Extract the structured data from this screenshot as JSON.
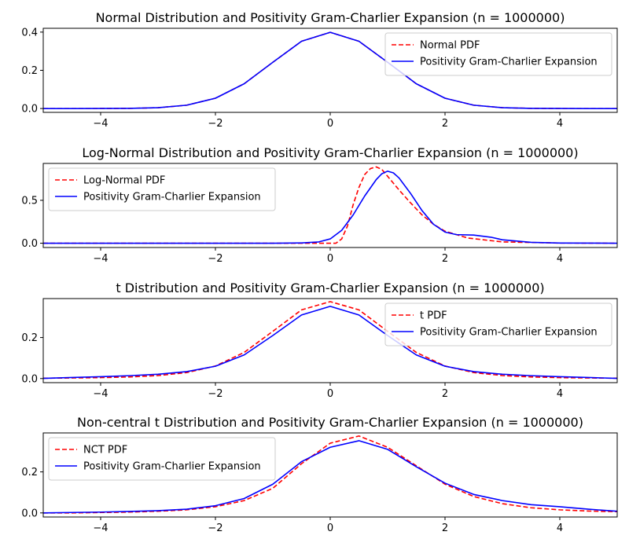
{
  "chart_data": [
    {
      "type": "line",
      "title": "Normal Distribution and Positivity Gram-Charlier Expansion (n = 1000000)",
      "xlim": [
        -5,
        5
      ],
      "ylim": [
        -0.02,
        0.42
      ],
      "xticks": [
        -4,
        -2,
        0,
        2,
        4
      ],
      "xtick_labels": [
        "−4",
        "−2",
        "0",
        "2",
        "4"
      ],
      "yticks": [
        0,
        0.2,
        0.4
      ],
      "ytick_labels": [
        "0.0",
        "0.2",
        "0.4"
      ],
      "legend_position": "upper right",
      "x": [
        -5,
        -4.5,
        -4,
        -3.5,
        -3,
        -2.5,
        -2,
        -1.5,
        -1,
        -0.5,
        0,
        0.5,
        1,
        1.5,
        2,
        2.5,
        3,
        3.5,
        4,
        4.5,
        5
      ],
      "series": [
        {
          "name": "Normal PDF",
          "color": "#ff0000",
          "style": "dashed",
          "values": [
            0.0,
            0.0,
            0.0001,
            0.0009,
            0.0044,
            0.0175,
            0.054,
            0.1295,
            0.242,
            0.3521,
            0.3989,
            0.3521,
            0.242,
            0.1295,
            0.054,
            0.0175,
            0.0044,
            0.0009,
            0.0001,
            0.0,
            0.0
          ]
        },
        {
          "name": "Positivity Gram-Charlier Expansion",
          "color": "#0000ff",
          "style": "solid",
          "values": [
            0.0,
            0.0,
            0.0001,
            0.0009,
            0.0044,
            0.0175,
            0.054,
            0.1295,
            0.242,
            0.3521,
            0.3989,
            0.3521,
            0.242,
            0.1295,
            0.054,
            0.0175,
            0.0044,
            0.0009,
            0.0001,
            0.0,
            0.0
          ]
        }
      ]
    },
    {
      "type": "line",
      "title": "Log-Normal Distribution and Positivity Gram-Charlier Expansion (n = 1000000)",
      "xlim": [
        -5,
        5
      ],
      "ylim": [
        -0.05,
        0.93
      ],
      "xticks": [
        -4,
        -2,
        0,
        2,
        4
      ],
      "xtick_labels": [
        "−4",
        "−2",
        "0",
        "2",
        "4"
      ],
      "yticks": [
        0,
        0.5
      ],
      "ytick_labels": [
        "0.0",
        "0.5"
      ],
      "legend_position": "upper left",
      "series": [
        {
          "name": "Log-Normal PDF",
          "color": "#ff0000",
          "style": "dashed",
          "x": [
            -5,
            -1,
            -0.2,
            0,
            0.1,
            0.2,
            0.3,
            0.4,
            0.5,
            0.6,
            0.7,
            0.8,
            0.9,
            1.0,
            1.2,
            1.4,
            1.6,
            1.8,
            2.0,
            2.4,
            3.0,
            4.0,
            5.0
          ],
          "values": [
            0,
            0,
            0,
            0,
            0.0,
            0.05,
            0.2,
            0.45,
            0.65,
            0.8,
            0.87,
            0.89,
            0.86,
            0.78,
            0.62,
            0.47,
            0.33,
            0.22,
            0.14,
            0.06,
            0.015,
            0.002,
            0.0
          ]
        },
        {
          "name": "Positivity Gram-Charlier Expansion",
          "color": "#0000ff",
          "style": "solid",
          "x": [
            -5,
            -1,
            -0.5,
            -0.2,
            0,
            0.2,
            0.4,
            0.6,
            0.8,
            0.9,
            1.0,
            1.1,
            1.2,
            1.4,
            1.6,
            1.8,
            2.0,
            2.2,
            2.5,
            2.8,
            3.0,
            3.5,
            4.0,
            5.0
          ],
          "values": [
            0,
            0,
            0.003,
            0.015,
            0.05,
            0.15,
            0.33,
            0.55,
            0.74,
            0.81,
            0.84,
            0.82,
            0.76,
            0.58,
            0.38,
            0.22,
            0.13,
            0.1,
            0.095,
            0.07,
            0.04,
            0.01,
            0.002,
            0.0
          ]
        }
      ]
    },
    {
      "type": "line",
      "title": "t Distribution and Positivity Gram-Charlier Expansion (n = 1000000)",
      "xlim": [
        -5,
        5
      ],
      "ylim": [
        -0.02,
        0.39
      ],
      "xticks": [
        -4,
        -2,
        0,
        2,
        4
      ],
      "xtick_labels": [
        "−4",
        "−2",
        "0",
        "2",
        "4"
      ],
      "yticks": [
        0,
        0.2
      ],
      "ytick_labels": [
        "0.0",
        "0.2"
      ],
      "legend_position": "upper right",
      "x": [
        -5,
        -4.5,
        -4,
        -3.5,
        -3,
        -2.5,
        -2,
        -1.5,
        -1,
        -0.5,
        0,
        0.5,
        1,
        1.5,
        2,
        2.5,
        3,
        3.5,
        4,
        4.5,
        5
      ],
      "series": [
        {
          "name": "t PDF",
          "color": "#ff0000",
          "style": "dashed",
          "values": [
            0.0017,
            0.0027,
            0.0044,
            0.0077,
            0.0145,
            0.0291,
            0.0611,
            0.1273,
            0.2303,
            0.335,
            0.375,
            0.335,
            0.2303,
            0.1273,
            0.0611,
            0.0291,
            0.0145,
            0.0077,
            0.0044,
            0.0027,
            0.0017
          ]
        },
        {
          "name": "Positivity Gram-Charlier Expansion",
          "color": "#0000ff",
          "style": "solid",
          "values": [
            0.001,
            0.005,
            0.009,
            0.014,
            0.021,
            0.034,
            0.06,
            0.115,
            0.21,
            0.31,
            0.352,
            0.31,
            0.21,
            0.115,
            0.06,
            0.034,
            0.021,
            0.014,
            0.009,
            0.005,
            0.001
          ]
        }
      ]
    },
    {
      "type": "line",
      "title": "Non-central t Distribution and Positivity Gram-Charlier Expansion (n = 1000000)",
      "xlim": [
        -5,
        5
      ],
      "ylim": [
        -0.02,
        0.39
      ],
      "xticks": [
        -4,
        -2,
        0,
        2,
        4
      ],
      "xtick_labels": [
        "−4",
        "−2",
        "0",
        "2",
        "4"
      ],
      "yticks": [
        0,
        0.2
      ],
      "ytick_labels": [
        "0.0",
        "0.2"
      ],
      "legend_position": "upper left",
      "x": [
        -5,
        -4.5,
        -4,
        -3.5,
        -3,
        -2.5,
        -2,
        -1.5,
        -1,
        -0.5,
        0,
        0.5,
        1,
        1.5,
        2,
        2.5,
        3,
        3.5,
        4,
        4.5,
        5
      ],
      "series": [
        {
          "name": "NCT PDF",
          "color": "#ff0000",
          "style": "dashed",
          "values": [
            0.0,
            0.0,
            0.002,
            0.004,
            0.008,
            0.015,
            0.03,
            0.06,
            0.12,
            0.24,
            0.34,
            0.375,
            0.32,
            0.23,
            0.14,
            0.08,
            0.045,
            0.025,
            0.015,
            0.009,
            0.006
          ]
        },
        {
          "name": "Positivity Gram-Charlier Expansion",
          "color": "#0000ff",
          "style": "solid",
          "values": [
            0.0,
            0.002,
            0.004,
            0.007,
            0.011,
            0.018,
            0.035,
            0.07,
            0.14,
            0.25,
            0.32,
            0.352,
            0.31,
            0.225,
            0.145,
            0.09,
            0.06,
            0.04,
            0.03,
            0.018,
            0.008
          ]
        }
      ]
    }
  ]
}
